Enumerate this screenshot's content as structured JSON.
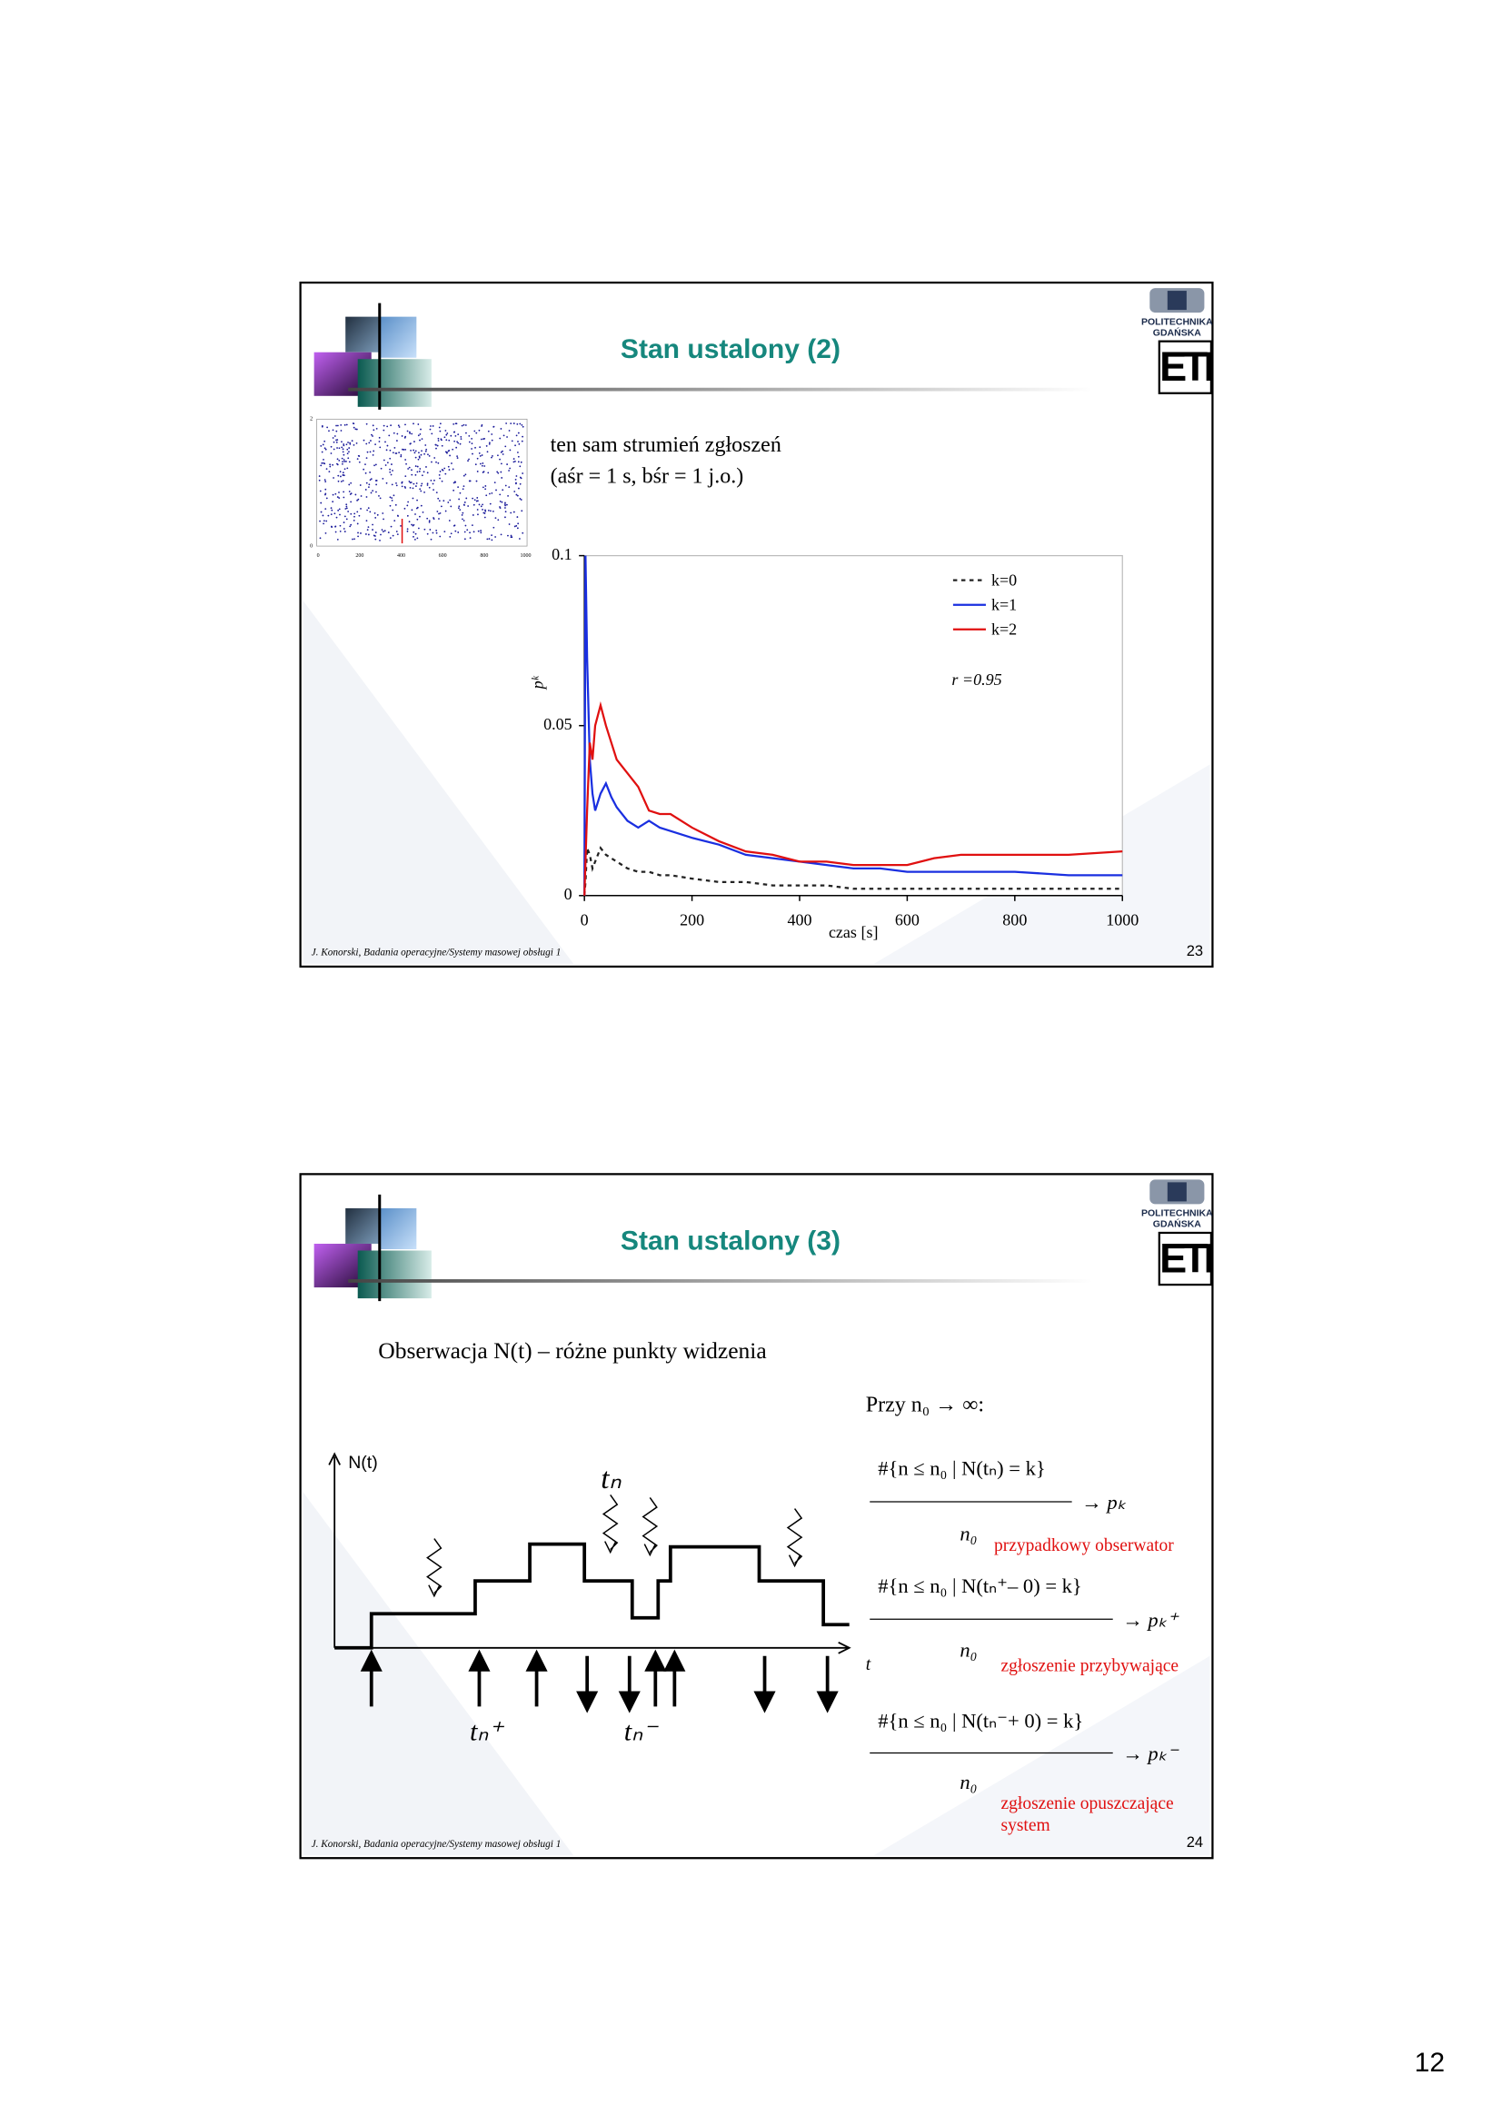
{
  "page_number": "12",
  "slides": [
    {
      "title": "Stan ustalony (2)",
      "logo": {
        "name": "POLITECHNIKA",
        "city": "GDAŃSKA",
        "mark": "ETI"
      },
      "text": [
        "ten sam strumień zgłoszeń",
        "(aśr = 1 s, bśr = 1 j.o.)"
      ],
      "thumbnail": {
        "xticks": [
          0,
          200,
          400,
          600,
          800,
          1000
        ],
        "yticks": [
          0,
          2
        ]
      },
      "chart": {
        "type": "line",
        "xlabel": "czas [s]",
        "ylabel": "pᵏ",
        "annotation": "r =0.95",
        "xlim": [
          0,
          1000
        ],
        "ylim": [
          0,
          0.1
        ],
        "xticks": [
          0,
          200,
          400,
          600,
          800,
          1000
        ],
        "yticks": [
          0,
          0.05,
          0.1
        ],
        "x": [
          0,
          2,
          5,
          10,
          15,
          20,
          30,
          40,
          50,
          60,
          80,
          100,
          120,
          140,
          160,
          200,
          250,
          300,
          350,
          400,
          450,
          500,
          550,
          600,
          650,
          700,
          800,
          900,
          1000
        ],
        "series": [
          {
            "name": "k=0",
            "color": "#222222",
            "dashed": true,
            "values": [
              0,
              0.004,
              0.014,
              0.012,
              0.008,
              0.01,
              0.014,
              0.012,
              0.011,
              0.01,
              0.008,
              0.007,
              0.007,
              0.006,
              0.006,
              0.005,
              0.004,
              0.004,
              0.003,
              0.003,
              0.003,
              0.002,
              0.002,
              0.002,
              0.002,
              0.002,
              0.002,
              0.002,
              0.002
            ]
          },
          {
            "name": "k=1",
            "color": "#1a2fe0",
            "dashed": false,
            "values": [
              0,
              0.1,
              0.07,
              0.04,
              0.03,
              0.025,
              0.03,
              0.033,
              0.029,
              0.026,
              0.022,
              0.02,
              0.022,
              0.02,
              0.019,
              0.017,
              0.015,
              0.012,
              0.011,
              0.01,
              0.009,
              0.008,
              0.008,
              0.007,
              0.007,
              0.007,
              0.007,
              0.006,
              0.006
            ]
          },
          {
            "name": "k=2",
            "color": "#e01010",
            "dashed": false,
            "values": [
              0,
              0.01,
              0.025,
              0.045,
              0.04,
              0.05,
              0.056,
              0.05,
              0.045,
              0.04,
              0.036,
              0.032,
              0.025,
              0.024,
              0.024,
              0.02,
              0.016,
              0.013,
              0.012,
              0.01,
              0.01,
              0.009,
              0.009,
              0.009,
              0.011,
              0.012,
              0.012,
              0.012,
              0.013
            ]
          }
        ]
      },
      "footer": "J. Konorski, Badania operacyjne/Systemy masowej obsługi 1",
      "number": "23"
    },
    {
      "title": "Stan ustalony (3)",
      "logo": {
        "name": "POLITECHNIKA",
        "city": "GDAŃSKA",
        "mark": "ETI"
      },
      "intro": "Obserwacja N(t) – różne punkty widzenia",
      "condition": "Przy n₀ → ∞:",
      "diagram": {
        "y_label": "N(t)",
        "x_label": "t",
        "labels": [
          "tₙ",
          "tₙ⁺",
          "tₙ⁻"
        ]
      },
      "formulas": [
        {
          "numerator": "#{n ≤ n₀ | N(tₙ) = k}",
          "result": "→ pₖ",
          "denominator": "n₀",
          "note": [
            "przypadkowy obserwator"
          ]
        },
        {
          "numerator": "#{n ≤ n₀ | N(tₙ⁺– 0) = k}",
          "result": "→ pₖ⁺",
          "denominator": "n₀",
          "note": [
            "zgłoszenie przybywające"
          ]
        },
        {
          "numerator": "#{n ≤ n₀ | N(tₙ⁻+ 0) = k}",
          "result": "→ pₖ⁻",
          "denominator": "n₀",
          "note": [
            "zgłoszenie opuszczające",
            "system"
          ]
        }
      ],
      "footer": "J. Konorski, Badania operacyjne/Systemy masowej obsługi 1",
      "number": "24"
    }
  ]
}
